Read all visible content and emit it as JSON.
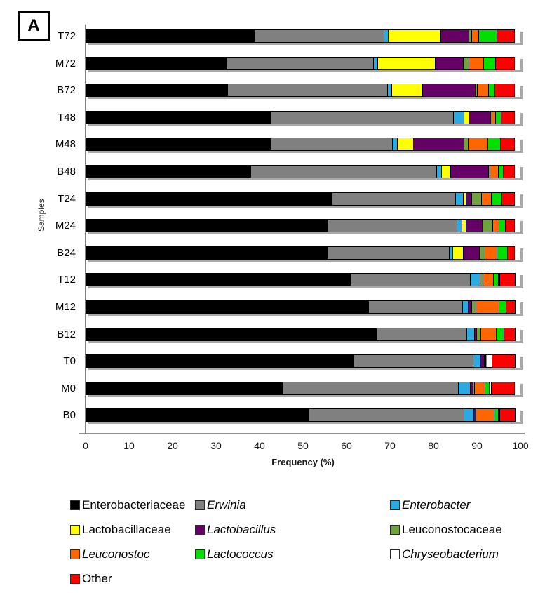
{
  "panel_label": "A",
  "chart_data": {
    "type": "bar",
    "orientation": "horizontal-stacked",
    "title": "",
    "xlabel": "Frequency (%)",
    "ylabel": "Samples",
    "xlim": [
      0,
      100
    ],
    "x_ticks": [
      0,
      10,
      20,
      30,
      40,
      50,
      60,
      70,
      80,
      90,
      100
    ],
    "grid": false,
    "legend_position": "bottom",
    "categories": [
      "T72",
      "M72",
      "B72",
      "T48",
      "M48",
      "B48",
      "T24",
      "M24",
      "B24",
      "T12",
      "M12",
      "B12",
      "T0",
      "M0",
      "B0"
    ],
    "series": [
      {
        "name": "Enterobacteriaceae",
        "color": "#000000",
        "italic": false,
        "values": [
          38.8,
          32.6,
          32.8,
          42.6,
          42.6,
          38.0,
          56.7,
          55.8,
          55.6,
          61.0,
          65.2,
          66.9,
          61.8,
          45.4,
          51.5
        ]
      },
      {
        "name": "Erwinia",
        "color": "#808080",
        "italic": true,
        "values": [
          30.1,
          33.9,
          36.9,
          42.2,
          28.2,
          42.9,
          28.7,
          29.8,
          28.2,
          27.7,
          21.7,
          21.0,
          27.6,
          40.6,
          35.8
        ]
      },
      {
        "name": "Enterobacter",
        "color": "#29ABE2",
        "italic": true,
        "values": [
          1.1,
          1.1,
          1.1,
          2.7,
          1.3,
          1.3,
          1.9,
          1.3,
          1.1,
          2.4,
          1.5,
          2.0,
          1.9,
          2.9,
          2.4
        ]
      },
      {
        "name": "Lactobacillaceae",
        "color": "#FFFF00",
        "italic": false,
        "values": [
          12.2,
          13.3,
          7.3,
          1.3,
          3.8,
          2.4,
          0.7,
          1.2,
          2.6,
          0,
          0,
          0,
          0,
          0,
          0
        ]
      },
      {
        "name": "Lactobacillus",
        "color": "#660066",
        "italic": true,
        "values": [
          6.6,
          6.7,
          12.3,
          5.1,
          11.8,
          8.8,
          1.6,
          3.9,
          3.8,
          0,
          1.0,
          0.6,
          0.9,
          0.8,
          0.6
        ]
      },
      {
        "name": "Leuconostocaceae",
        "color": "#70A33F",
        "italic": false,
        "values": [
          0.9,
          1.5,
          0.6,
          0.4,
          1.2,
          0.5,
          2.4,
          2.6,
          1.4,
          0.8,
          1.1,
          1.1,
          0,
          0.5,
          0
        ]
      },
      {
        "name": "Leuconostoc",
        "color": "#FF6600",
        "italic": true,
        "values": [
          1.8,
          3.5,
          2.7,
          1.0,
          4.6,
          2.0,
          2.3,
          1.6,
          2.9,
          2.6,
          5.4,
          3.8,
          0.6,
          2.5,
          4.4
        ]
      },
      {
        "name": "Lactococcus",
        "color": "#00E000",
        "italic": true,
        "values": [
          4.3,
          2.9,
          1.6,
          1.5,
          3.1,
          1.4,
          2.6,
          1.6,
          2.6,
          1.3,
          1.8,
          1.9,
          0.5,
          1.1,
          1.1
        ]
      },
      {
        "name": "Chryseobacterium",
        "color": "#FFFFFF",
        "italic": true,
        "values": [
          0,
          0,
          0,
          0,
          0,
          0,
          0,
          0,
          0,
          0.5,
          0,
          0,
          1.3,
          0.8,
          0.5
        ]
      },
      {
        "name": "Other",
        "color": "#FF0000",
        "italic": false,
        "values": [
          4.2,
          4.5,
          4.7,
          3.2,
          3.4,
          2.7,
          3.1,
          2.2,
          1.8,
          3.7,
          2.3,
          2.7,
          5.4,
          5.4,
          3.7
        ]
      }
    ]
  }
}
